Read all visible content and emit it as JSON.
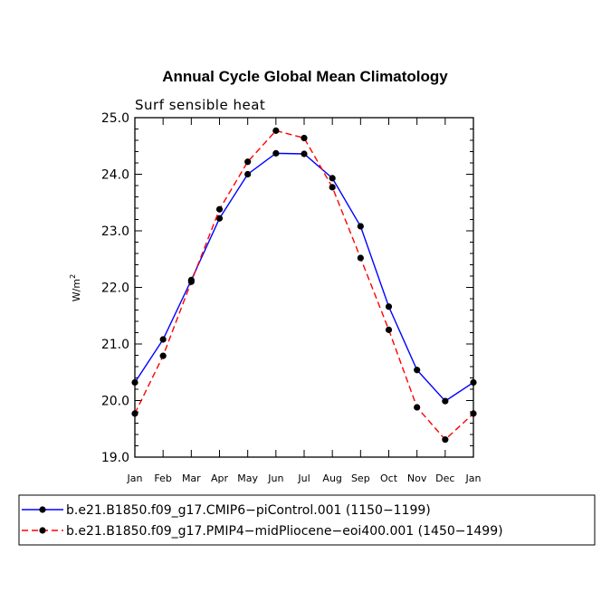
{
  "chart_data": {
    "type": "line",
    "title": "Annual Cycle Global Mean Climatology",
    "subtitle": "Surf sensible heat",
    "ylabel": "W/m",
    "ylabel_superscript": "2",
    "xlabel": "",
    "categories": [
      "Jan",
      "Feb",
      "Mar",
      "Apr",
      "May",
      "Jun",
      "Jul",
      "Aug",
      "Sep",
      "Oct",
      "Nov",
      "Dec",
      "Jan"
    ],
    "ylim": [
      19.0,
      25.0
    ],
    "yticks": [
      "19.0",
      "20.0",
      "21.0",
      "22.0",
      "23.0",
      "24.0",
      "25.0"
    ],
    "grid": false,
    "legend_position": "bottom",
    "series": [
      {
        "name": "b.e21.B1850.f09_g17.CMIP6−piControl.001 (1150−1199)",
        "color": "#0000ff",
        "dash": "solid",
        "marker": "filled-circle",
        "values": [
          20.32,
          21.08,
          22.13,
          23.22,
          24.0,
          24.37,
          24.36,
          23.93,
          23.08,
          21.66,
          20.54,
          19.99,
          20.32
        ]
      },
      {
        "name": "b.e21.B1850.f09_g17.PMIP4−midPliocene−eoi400.001 (1450−1499)",
        "color": "#ff0000",
        "dash": "dashed",
        "marker": "filled-circle",
        "values": [
          19.77,
          20.79,
          22.1,
          23.38,
          24.22,
          24.77,
          24.64,
          23.77,
          22.52,
          21.25,
          19.88,
          19.31,
          19.77
        ]
      }
    ]
  }
}
